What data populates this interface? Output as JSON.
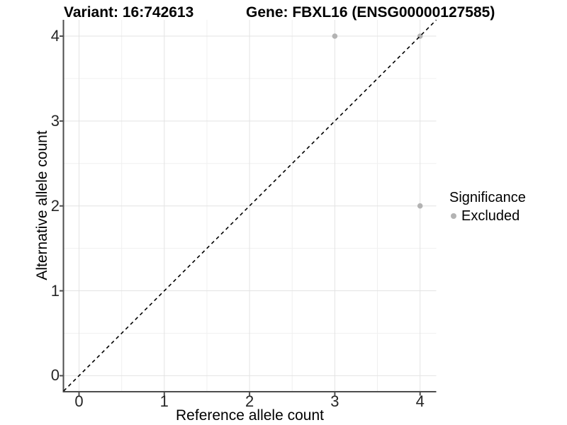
{
  "titles": {
    "variant": "Variant: 16:742613",
    "gene": "Gene: FBXL16 (ENSG00000127585)"
  },
  "axes": {
    "x_label": "Reference allele count",
    "y_label": "Alternative allele count",
    "x_tick_labels": [
      "0",
      "1",
      "2",
      "3",
      "4"
    ],
    "y_tick_labels": [
      "0",
      "1",
      "2",
      "3",
      "4"
    ]
  },
  "legend": {
    "title": "Significance",
    "items": [
      {
        "label": "Excluded",
        "color": "#b3b3b3"
      }
    ]
  },
  "chart_data": {
    "type": "scatter",
    "title": "Variant: 16:742613 | Gene: FBXL16 (ENSG00000127585)",
    "xlabel": "Reference allele count",
    "ylabel": "Alternative allele count",
    "xlim": [
      -0.18,
      4.19
    ],
    "ylim": [
      -0.18,
      4.19
    ],
    "x_ticks": [
      0,
      1,
      2,
      3,
      4
    ],
    "y_ticks": [
      0,
      1,
      2,
      3,
      4
    ],
    "grid": "major gridlines at integers, minor gridlines at 0.5 steps, light gray on white panel",
    "legend_position": "right-center",
    "series": [
      {
        "name": "Excluded",
        "color": "#b3b3b3",
        "marker": "circle",
        "points": [
          {
            "x": 3,
            "y": 4
          },
          {
            "x": 4,
            "y": 2
          },
          {
            "x": 4,
            "y": 4
          }
        ]
      }
    ],
    "reference_line": {
      "type": "identity y=x",
      "style": "dashed",
      "color": "#000000"
    }
  },
  "colors": {
    "background": "#ffffff",
    "grid_major": "#e3e3e3",
    "grid_minor": "#f0f0f0",
    "axis": "#4d4d4d",
    "tick_text": "#262626",
    "point": "#b3b3b3",
    "dashed_line": "#000000"
  }
}
